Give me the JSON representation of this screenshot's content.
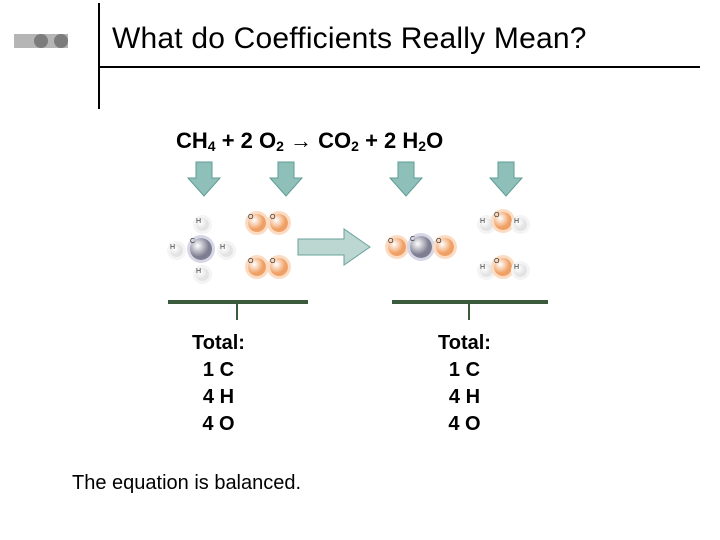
{
  "bullets": {
    "colors": [
      "#b5b5b5",
      "#b5b5b5",
      "#7c7c7c"
    ]
  },
  "title": "What do Coefficients Really Mean?",
  "equation": {
    "terms": [
      {
        "formula": "CH",
        "sub": "4"
      },
      {
        "op": " + "
      },
      {
        "pre": "2 ",
        "formula": "O",
        "sub": "2"
      },
      {
        "op": " "
      },
      {
        "arrow": "→"
      },
      {
        "op": " "
      },
      {
        "formula": "CO",
        "sub": "2"
      },
      {
        "op": " + "
      },
      {
        "pre": "2 ",
        "formula": "H",
        "sub": "2",
        "post": "O"
      }
    ]
  },
  "arrows": {
    "down_fill": "#8fbfb9",
    "down_stroke": "#5f9c95",
    "big_fill": "#bcd6d2",
    "big_stroke": "#6aa39c"
  },
  "atoms": {
    "C": {
      "fill": "#7e7e91",
      "glow": "#d6d6e6"
    },
    "H": {
      "fill": "#e3e3e3",
      "glow": "#f4f4f4"
    },
    "O": {
      "fill": "#f0a064",
      "glow": "#fbdcc3"
    },
    "labels": {
      "C": "C",
      "H": "H",
      "O": "O"
    }
  },
  "totals": {
    "left": {
      "heading": "Total:",
      "lines": [
        "1 C",
        "4 H",
        "4 O"
      ]
    },
    "right": {
      "heading": "Total:",
      "lines": [
        "1 C",
        "4 H",
        "4 O"
      ]
    }
  },
  "footnote": "The equation is balanced.",
  "layout": {
    "bar_color": "#3a5a3c",
    "bar2_color": "#3a5a3c"
  }
}
